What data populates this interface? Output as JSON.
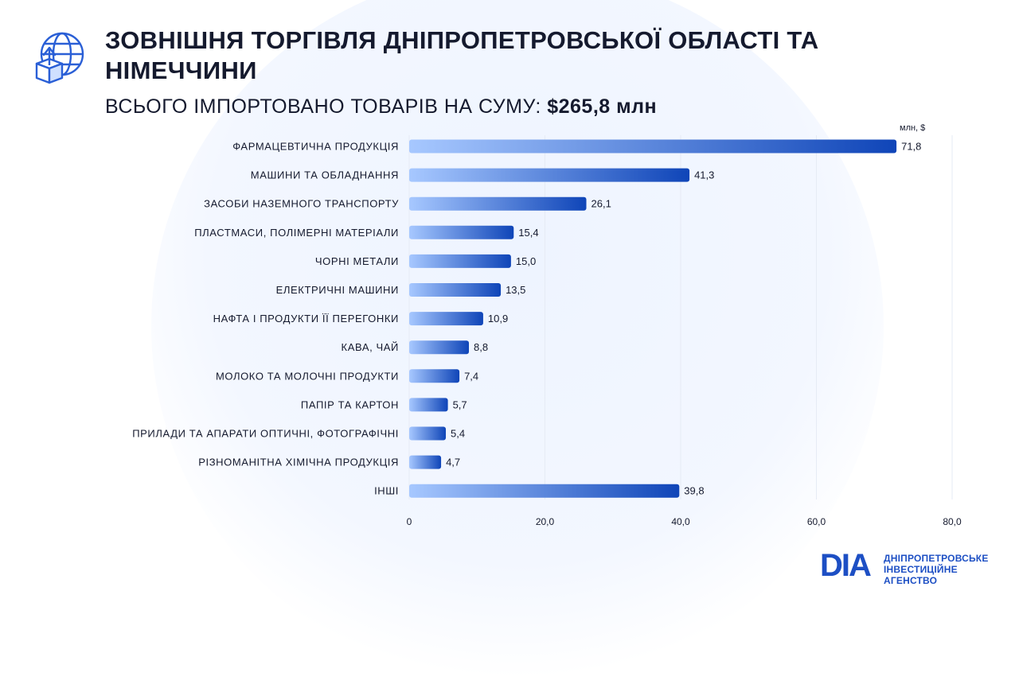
{
  "header": {
    "title": "ЗОВНІШНЯ ТОРГІВЛЯ ДНІПРОПЕТРОВСЬКОЇ ОБЛАСТІ ТА НІМЕЧЧИНИ",
    "subtitle_prefix": "ВСЬОГО ІМПОРТОВАНО ТОВАРІВ НА СУМУ:",
    "subtitle_amount": "$265,8 млн",
    "icon": "globe-box-icon"
  },
  "chart_data": {
    "type": "bar",
    "orientation": "horizontal",
    "title": "",
    "unit_label": "млн, $",
    "categories": [
      "ФАРМАЦЕВТИЧНА ПРОДУКЦІЯ",
      "МАШИНИ ТА ОБЛАДНАННЯ",
      "ЗАСОБИ НАЗЕМНОГО ТРАНСПОРТУ",
      "ПЛАСТМАСИ, ПОЛІМЕРНІ МАТЕРІАЛИ",
      "ЧОРНІ МЕТАЛИ",
      "ЕЛЕКТРИЧНІ МАШИНИ",
      "НАФТА І ПРОДУКТИ ЇЇ ПЕРЕГОНКИ",
      "КАВА, ЧАЙ",
      "МОЛОКО ТА МОЛОЧНІ ПРОДУКТИ",
      "ПАПІР ТА КАРТОН",
      "ПРИЛАДИ ТА АПАРАТИ ОПТИЧНІ, ФОТОГРАФІЧНІ",
      "РІЗНОМАНІТНА ХІМІЧНА ПРОДУКЦІЯ",
      "ІНШІ"
    ],
    "values": [
      71.8,
      41.3,
      26.1,
      15.4,
      15.0,
      13.5,
      10.9,
      8.8,
      7.4,
      5.7,
      5.4,
      4.7,
      39.8
    ],
    "value_labels": [
      "71,8",
      "41,3",
      "26,1",
      "15,4",
      "15,0",
      "13,5",
      "10,9",
      "8,8",
      "7,4",
      "5,7",
      "5,4",
      "4,7",
      "39,8"
    ],
    "xlim": [
      0,
      80
    ],
    "xticks": [
      0,
      20,
      40,
      60,
      80
    ],
    "xtick_labels": [
      "0",
      "20,0",
      "40,0",
      "60,0",
      "80,0"
    ],
    "grid": "vertical",
    "bar_gradient": [
      "#a7c8ff",
      "#0f45b8"
    ]
  },
  "branding": {
    "logo_mark": "DIA",
    "line1": "ДНІПРОПЕТРОВСЬКЕ",
    "line2": "ІНВЕСТИЦІЙНЕ АГЕНСТВО",
    "color": "#1d4fc4"
  }
}
